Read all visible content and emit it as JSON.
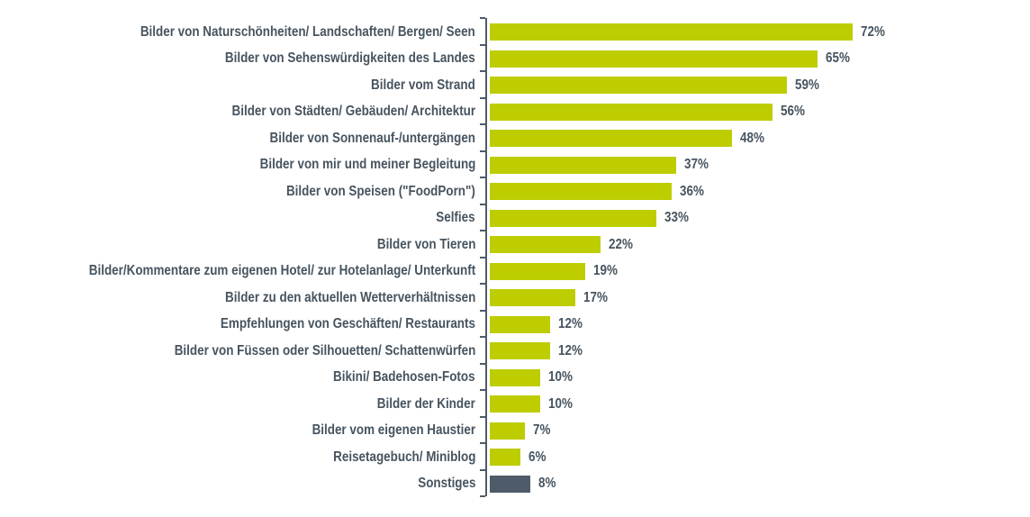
{
  "chart_data": {
    "type": "bar",
    "orientation": "horizontal",
    "title": "",
    "categories": [
      "Bilder von Naturschönheiten/ Landschaften/ Bergen/ Seen",
      "Bilder von Sehenswürdigkeiten des Landes",
      "Bilder vom Strand",
      "Bilder von Städten/ Gebäuden/ Architektur",
      "Bilder von Sonnenauf-/untergängen",
      "Bilder von mir und meiner Begleitung",
      "Bilder von Speisen (\"FoodPorn\")",
      "Selfies",
      "Bilder von Tieren",
      "Bilder/Kommentare zum eigenen Hotel/ zur Hotelanlage/ Unterkunft",
      "Bilder zu den aktuellen Wetterverhältnissen",
      "Empfehlungen von Geschäften/ Restaurants",
      "Bilder von Füssen oder Silhouetten/ Schattenwürfen",
      "Bikini/ Badehosen-Fotos",
      "Bilder der Kinder",
      "Bilder vom eigenen Haustier",
      "Reisetagebuch/ Miniblog",
      "Sonstiges"
    ],
    "values": [
      72,
      65,
      59,
      56,
      48,
      37,
      36,
      33,
      22,
      19,
      17,
      12,
      12,
      10,
      10,
      7,
      6,
      8
    ],
    "value_labels": [
      "72%",
      "65%",
      "59%",
      "56%",
      "48%",
      "37%",
      "36%",
      "33%",
      "22%",
      "19%",
      "17%",
      "12%",
      "12%",
      "10%",
      "10%",
      "7%",
      "6%",
      "8%"
    ],
    "highlight_index": 17,
    "xlim": [
      0,
      100
    ],
    "grid": false,
    "legend": false,
    "axis_ticks": "one tick per category boundary on the vertical axis"
  },
  "colors": {
    "bar": "#BDCD00",
    "bar_highlight": "#4E5B69",
    "text": "#47545F",
    "axis": "#4E5B69",
    "background": "#FFFFFF"
  }
}
